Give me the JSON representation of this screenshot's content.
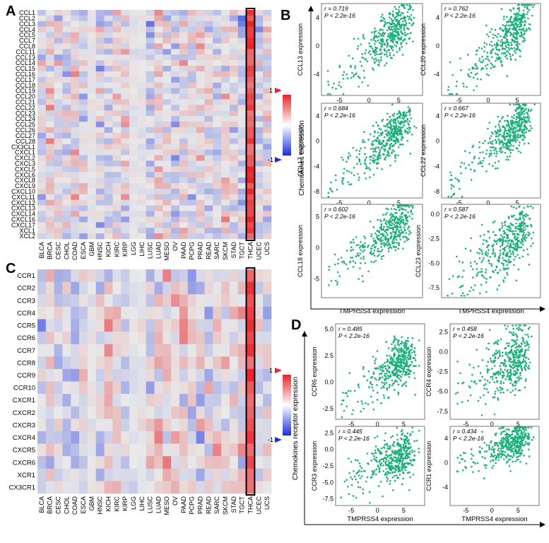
{
  "figure": {
    "panels": {
      "A": "A",
      "B": "B",
      "C": "C",
      "D": "D"
    },
    "legend_scale": {
      "top": "1",
      "bottom": "-1"
    },
    "colors": {
      "positive": "#e8232b",
      "negative": "#1a2fe0",
      "neutral": "#e6e6e6",
      "scatter": "#1bb07a",
      "highlight": "#000000"
    }
  },
  "chart_data": [
    {
      "type": "heatmap",
      "panel": "A",
      "rows": [
        "CCL1",
        "CCL2",
        "CCL3",
        "CCL4",
        "CCL5",
        "CCL7",
        "CCL8",
        "CCL11",
        "CCL13",
        "CCL14",
        "CCL15",
        "CCL16",
        "CCL17",
        "CCL18",
        "CCL19",
        "CCL20",
        "CCL21",
        "CCL22",
        "CCL23",
        "CCL24",
        "CCL25",
        "CCL26",
        "CCL27",
        "CCL28",
        "CX3CL1",
        "CXCL1",
        "CXCL2",
        "CXCL3",
        "CXCL5",
        "CXCL6",
        "CXCL8",
        "CXCL9",
        "CXCL10",
        "CXCL11",
        "CXCL12",
        "CXCL13",
        "CXCL14",
        "CXCL16",
        "CXCL17",
        "XCL1",
        "XCL2"
      ],
      "columns": [
        "BLCA",
        "BRCA",
        "CESC",
        "CHOL",
        "COAD",
        "ESCA",
        "GBM",
        "HNSC",
        "KICH",
        "KIRC",
        "KIRP",
        "LGG",
        "LIHC",
        "LUSC",
        "LUAD",
        "MESO",
        "OV",
        "PAAD",
        "PCPG",
        "PRAD",
        "READ",
        "SARC",
        "SKCM",
        "STAD",
        "TGCT",
        "THCA",
        "UCEC",
        "UCS"
      ],
      "highlight_column": "THCA",
      "scale": [
        -1,
        1
      ]
    },
    {
      "type": "scatter",
      "panel": "B",
      "xlabel": "TMPRSS4 expression",
      "ylabel": "Chemokines expression",
      "subplots": [
        {
          "ylabel": "CCL13 expression",
          "r": "r = 0.719",
          "p": "P < 2.2e-16",
          "xticks": [
            "-5",
            "0",
            "5"
          ],
          "yticks": [
            "4",
            "0",
            "-4"
          ],
          "xlim": [
            -8,
            9
          ],
          "ylim": [
            -7,
            6
          ],
          "slope": 0.72,
          "intercept": -1.0,
          "spread": 1.7
        },
        {
          "ylabel": "CCL20 expression",
          "r": "r = 0.762",
          "p": "P < 2.2e-16",
          "xticks": [
            "-5",
            "0",
            "5"
          ],
          "yticks": [
            "4",
            "0",
            "-4"
          ],
          "xlim": [
            -8,
            9
          ],
          "ylim": [
            -7,
            6
          ],
          "slope": 0.8,
          "intercept": -1.3,
          "spread": 1.6
        },
        {
          "ylabel": "CCL17 expression",
          "r": "r = 0.684",
          "p": "P < 2.2e-16",
          "xticks": [
            "-5",
            "0",
            "5"
          ],
          "yticks": [
            "4",
            "0",
            "-4",
            "-8"
          ],
          "xlim": [
            -8,
            9
          ],
          "ylim": [
            -9,
            6
          ],
          "slope": 0.8,
          "intercept": -2.2,
          "spread": 1.8
        },
        {
          "ylabel": "CCL22 expression",
          "r": "r = 0.667",
          "p": "P < 2.2e-16",
          "xticks": [
            "-5",
            "0",
            "5"
          ],
          "yticks": [
            "4",
            "0",
            "-4",
            "-8"
          ],
          "xlim": [
            -8,
            9
          ],
          "ylim": [
            -9,
            6
          ],
          "slope": 0.75,
          "intercept": -1.6,
          "spread": 1.8
        },
        {
          "ylabel": "CCL18 expression",
          "r": "r = 0.602",
          "p": "P < 2.2e-16",
          "xticks": [
            "-5",
            "0",
            "5"
          ],
          "yticks": [
            "5",
            "0",
            "-5"
          ],
          "xlim": [
            -8,
            9
          ],
          "ylim": [
            -8,
            7
          ],
          "slope": 0.7,
          "intercept": 0.0,
          "spread": 2.0
        },
        {
          "ylabel": "CCL23 expression",
          "r": "r = 0.587",
          "p": "P < 2.2e-16",
          "xticks": [
            "-5",
            "0",
            "5"
          ],
          "yticks": [
            "0.0",
            "-2.5",
            "-5.0",
            "-7.5"
          ],
          "xlim": [
            -8,
            9
          ],
          "ylim": [
            -8.5,
            1
          ],
          "slope": 0.45,
          "intercept": -4.5,
          "spread": 1.5
        }
      ]
    },
    {
      "type": "heatmap",
      "panel": "C",
      "rows": [
        "CCR1",
        "CCR2",
        "CCR3",
        "CCR4",
        "CCR5",
        "CCR6",
        "CCR7",
        "CCR8",
        "CCR9",
        "CCR10",
        "CXCR1",
        "CXCR2",
        "CXCR3",
        "CXCR4",
        "CXCR5",
        "CXCR6",
        "XCR1",
        "CX3CR1"
      ],
      "columns": [
        "BLCA",
        "BRCA",
        "CESC",
        "CHOL",
        "COAD",
        "ESCA",
        "GBM",
        "HNSC",
        "KICH",
        "KIRC",
        "KIRP",
        "LGG",
        "LIHC",
        "LUSC",
        "LUAD",
        "MESO",
        "OV",
        "PAAD",
        "PCPG",
        "PRAD",
        "READ",
        "SARC",
        "SKCM",
        "STAD",
        "TGCT",
        "THCA",
        "UCEC",
        "UCS"
      ],
      "highlight_column": "THCA",
      "scale": [
        -1,
        1
      ]
    },
    {
      "type": "scatter",
      "panel": "D",
      "xlabel": "TMPRSS4 expression",
      "ylabel": "Chemokines receptor expression",
      "subplots": [
        {
          "ylabel": "CCR6 expression",
          "r": "r = 0.485",
          "p": "P < 2.2e-16",
          "xticks": [
            "-5",
            "0",
            "5"
          ],
          "yticks": [
            "5.0",
            "2.5",
            "0.0",
            "-2.5"
          ],
          "xlim": [
            -8,
            9
          ],
          "ylim": [
            -3.5,
            5.5
          ],
          "slope": 0.3,
          "intercept": 0.5,
          "spread": 1.2
        },
        {
          "ylabel": "CCR4 expression",
          "r": "r = 0.458",
          "p": "P < 2.2e-16",
          "xticks": [
            "-5",
            "0",
            "5"
          ],
          "yticks": [
            "2.5",
            "0.0",
            "-2.5",
            "-5.0",
            "-7.5"
          ],
          "xlim": [
            -8,
            9
          ],
          "ylim": [
            -8.5,
            3.5
          ],
          "slope": 0.35,
          "intercept": -2.5,
          "spread": 2.0
        },
        {
          "ylabel": "CCR3 expression",
          "r": "r = 0.445",
          "p": "P < 2.2e-16",
          "xticks": [
            "-5",
            "0",
            "5"
          ],
          "yticks": [
            "2.5",
            "0.0",
            "-2.5",
            "-5.0",
            "-7.5"
          ],
          "xlim": [
            -8,
            9
          ],
          "ylim": [
            -8.5,
            3.5
          ],
          "slope": 0.35,
          "intercept": -2.5,
          "spread": 1.8
        },
        {
          "ylabel": "CCR1 expression",
          "r": "r = 0.434",
          "p": "P < 2.2e-16",
          "xticks": [
            "-5",
            "0",
            "5"
          ],
          "yticks": [
            "4",
            "0",
            "-4"
          ],
          "xlim": [
            -8,
            9
          ],
          "ylim": [
            -7,
            6
          ],
          "slope": 0.3,
          "intercept": 2.0,
          "spread": 1.5
        }
      ]
    }
  ]
}
